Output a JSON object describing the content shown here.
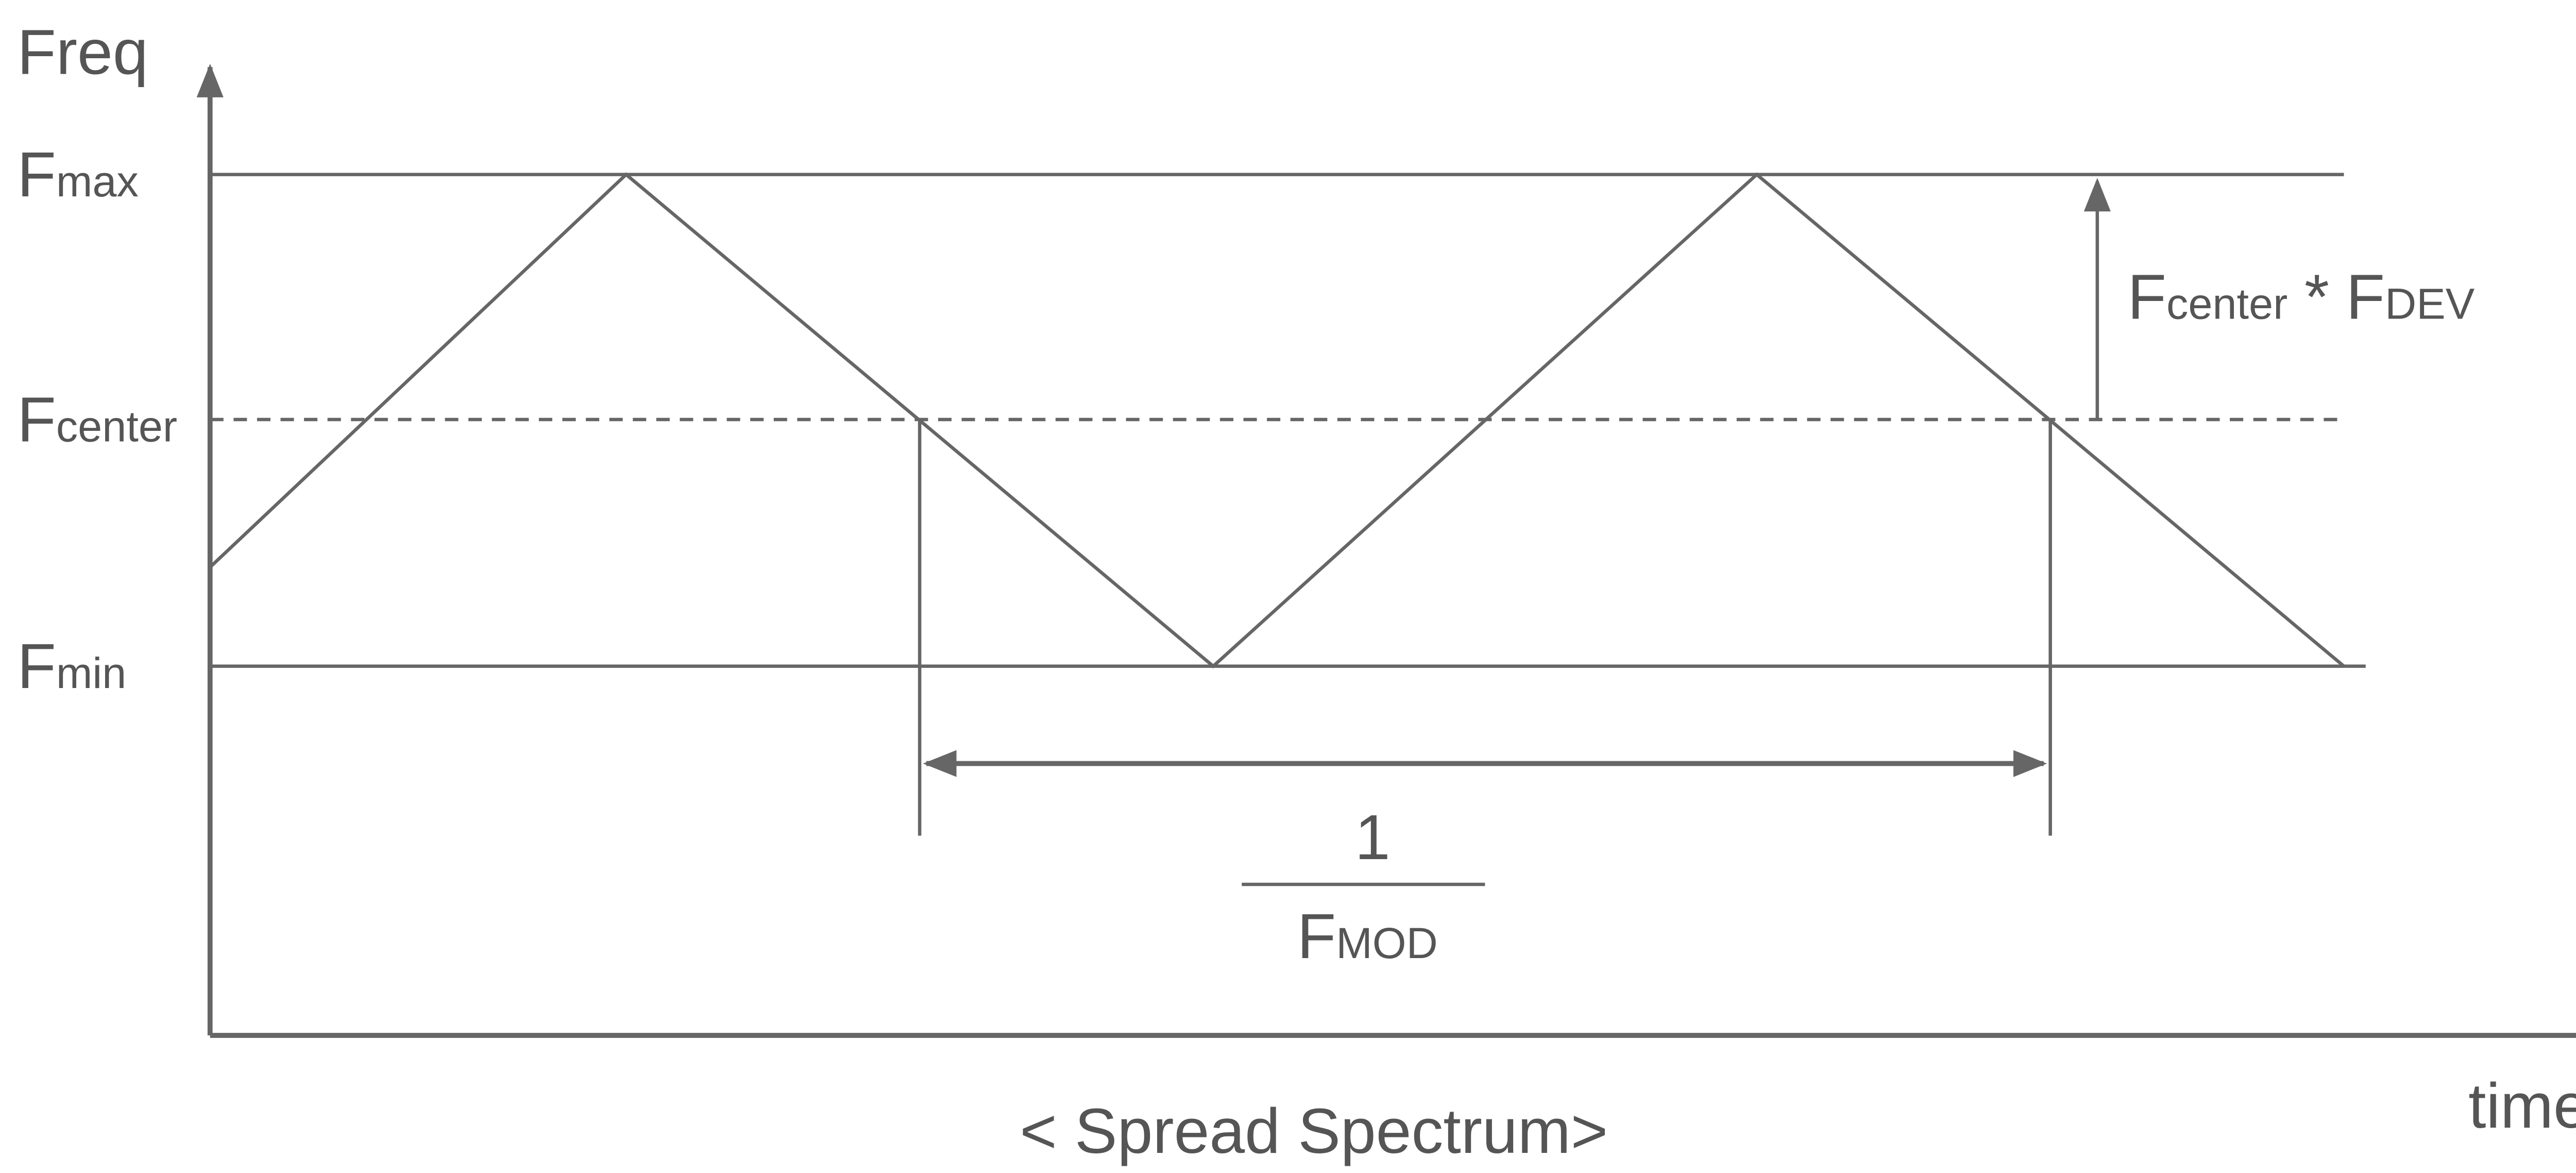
{
  "y_axis_label": "Freq",
  "x_axis_label": "time",
  "levels": [
    {
      "main": "F",
      "sub": "max"
    },
    {
      "main": "F",
      "sub": "center"
    },
    {
      "main": "F",
      "sub": "min"
    }
  ],
  "deviation_label": {
    "main1": "F",
    "sub1": "center",
    "operator": "*",
    "main2": "F",
    "sub2": "DEV"
  },
  "period_label": {
    "numerator": "1",
    "denominator_main": "F",
    "denominator_sub": "MOD"
  },
  "caption": "< Spread Spectrum>"
}
